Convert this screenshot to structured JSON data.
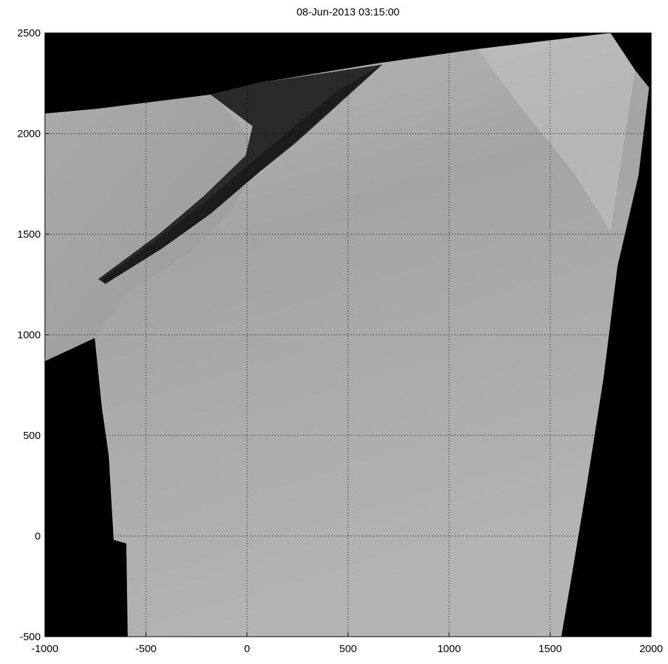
{
  "chart_data": {
    "type": "image",
    "title": "08-Jun-2013 03:15:00",
    "xlim": [
      -1000,
      2000
    ],
    "xticks": [
      -1000,
      -500,
      0,
      500,
      1000,
      1500,
      2000
    ],
    "ylim": [
      -500,
      2500
    ],
    "yticks": [
      -500,
      0,
      500,
      1000,
      1500,
      2000,
      2500
    ],
    "grid": true
  }
}
